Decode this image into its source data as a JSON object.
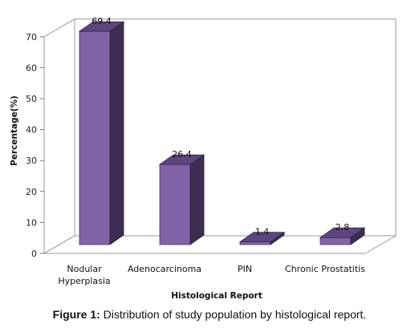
{
  "chart_data": {
    "type": "bar",
    "categories": [
      [
        "Nodular",
        "Hyperplasia"
      ],
      [
        "Adenocarcinoma"
      ],
      [
        "PIN"
      ],
      [
        "Chronic Prostatitis"
      ]
    ],
    "values": [
      69.4,
      26.4,
      1.4,
      2.8
    ],
    "value_labels": [
      "69.4",
      "26.4",
      "1.4",
      "2.8"
    ],
    "xlabel": "Histological Report",
    "ylabel": "Percentage(%)",
    "ylim": [
      0,
      70
    ],
    "yticks": [
      "0",
      "10",
      "20",
      "30",
      "40",
      "50",
      "60",
      "70"
    ],
    "legend": "none",
    "three_d": true,
    "colors": {
      "front": "#8262a6",
      "side": "#3d2d50",
      "top": "#5d4680",
      "frame": "#9a9a9a"
    }
  },
  "caption": {
    "label": "Figure 1:",
    "text": " Distribution of study population by histological report."
  }
}
